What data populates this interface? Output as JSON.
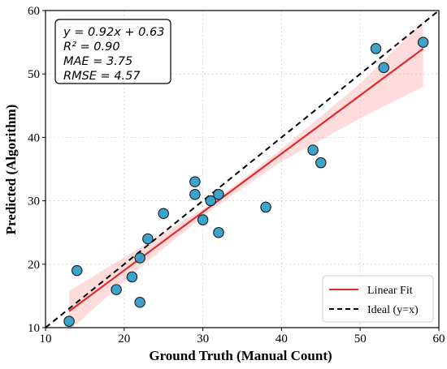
{
  "chart_data": {
    "type": "scatter",
    "xlabel": "Ground Truth (Manual Count)",
    "ylabel": "Predicted (Algorithm)",
    "xlim": [
      10,
      60
    ],
    "ylim": [
      10,
      60
    ],
    "xticks": [
      10,
      20,
      30,
      40,
      50,
      60
    ],
    "yticks": [
      10,
      20,
      30,
      40,
      50,
      60
    ],
    "grid": true,
    "points": [
      {
        "x": 13,
        "y": 11
      },
      {
        "x": 14,
        "y": 19
      },
      {
        "x": 19,
        "y": 16
      },
      {
        "x": 21,
        "y": 18
      },
      {
        "x": 22,
        "y": 14
      },
      {
        "x": 22,
        "y": 21
      },
      {
        "x": 23,
        "y": 24
      },
      {
        "x": 25,
        "y": 28
      },
      {
        "x": 29,
        "y": 33
      },
      {
        "x": 29,
        "y": 31
      },
      {
        "x": 30,
        "y": 27
      },
      {
        "x": 31,
        "y": 30
      },
      {
        "x": 32,
        "y": 31
      },
      {
        "x": 32,
        "y": 25
      },
      {
        "x": 38,
        "y": 29
      },
      {
        "x": 44,
        "y": 38
      },
      {
        "x": 45,
        "y": 36
      },
      {
        "x": 52,
        "y": 54
      },
      {
        "x": 53,
        "y": 51
      },
      {
        "x": 58,
        "y": 55
      }
    ],
    "point_color": "#2b9bc9",
    "fit": {
      "slope": 0.92,
      "intercept": 0.63,
      "x_range": [
        13,
        58
      ],
      "color": "#e02a2a",
      "band_color": "#ff9a9a"
    },
    "ideal_color": "#000000",
    "confidence_band": [
      {
        "x": 13,
        "lo": 9.5,
        "hi": 15.8
      },
      {
        "x": 22,
        "lo": 19.5,
        "hi": 22.6
      },
      {
        "x": 31,
        "lo": 28.5,
        "hi": 29.5
      },
      {
        "x": 40,
        "lo": 36.2,
        "hi": 38.2
      },
      {
        "x": 50,
        "lo": 43.0,
        "hi": 48.5
      },
      {
        "x": 58,
        "lo": 48.0,
        "hi": 58.3
      }
    ],
    "stats": {
      "equation": "y = 0.92x + 0.63",
      "r2": "R² = 0.90",
      "mae": "MAE = 3.75",
      "rmse": "RMSE = 4.57"
    },
    "legend": {
      "position": "bottom-right",
      "entries": [
        {
          "label": "Linear Fit",
          "style": "solid"
        },
        {
          "label": "Ideal (y=x)",
          "style": "dashed"
        }
      ]
    }
  }
}
